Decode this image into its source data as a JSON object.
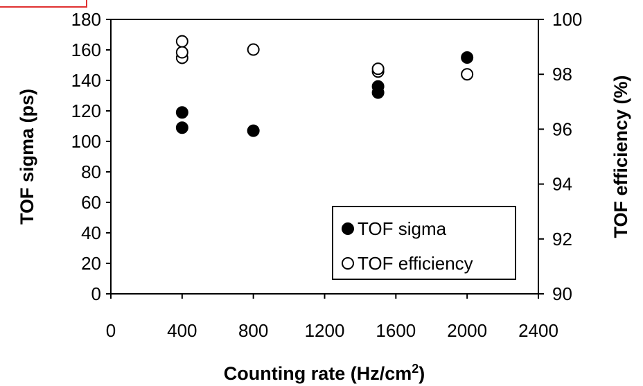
{
  "chart_data": {
    "type": "scatter",
    "title": "",
    "xlabel": "Counting rate (Hz/cm",
    "xlabel_superscript": "2",
    "xlabel_suffix": ")",
    "ylabel": "TOF sigma (ps)",
    "y2label": "TOF efficiency (%)",
    "xlim": [
      0,
      2400
    ],
    "ylim": [
      0,
      180
    ],
    "y2lim": [
      90,
      100
    ],
    "grid": false,
    "legend_position": "bottom-right",
    "x_ticks": [
      0,
      400,
      800,
      1200,
      1600,
      2000,
      2400
    ],
    "x_tick_labels": [
      "0",
      "400",
      "800",
      "1200",
      "1600",
      "2000",
      "2400"
    ],
    "y_ticks": [
      0,
      20,
      40,
      60,
      80,
      100,
      120,
      140,
      160,
      180
    ],
    "y_tick_labels": [
      "0",
      "20",
      "40",
      "60",
      "80",
      "100",
      "120",
      "140",
      "160",
      "180"
    ],
    "y2_ticks": [
      90,
      92,
      94,
      96,
      98,
      100
    ],
    "y2_tick_labels": [
      "90",
      "92",
      "94",
      "96",
      "98",
      "100"
    ],
    "series": [
      {
        "name": "TOF sigma",
        "axis": "left",
        "marker": "filled-circle",
        "color": "#000000",
        "points": [
          {
            "x": 400,
            "y": 109
          },
          {
            "x": 400,
            "y": 119
          },
          {
            "x": 800,
            "y": 107
          },
          {
            "x": 1500,
            "y": 132
          },
          {
            "x": 1500,
            "y": 136
          },
          {
            "x": 2000,
            "y": 155
          }
        ]
      },
      {
        "name": "TOF efficiency",
        "axis": "right",
        "marker": "open-circle",
        "color": "#000000",
        "points": [
          {
            "x": 400,
            "y": 98.6
          },
          {
            "x": 400,
            "y": 98.8
          },
          {
            "x": 400,
            "y": 99.2
          },
          {
            "x": 800,
            "y": 98.9
          },
          {
            "x": 1500,
            "y": 98.1
          },
          {
            "x": 1500,
            "y": 98.2
          },
          {
            "x": 2000,
            "y": 98.0
          }
        ]
      }
    ]
  },
  "corner_mark_color": "#e03030"
}
